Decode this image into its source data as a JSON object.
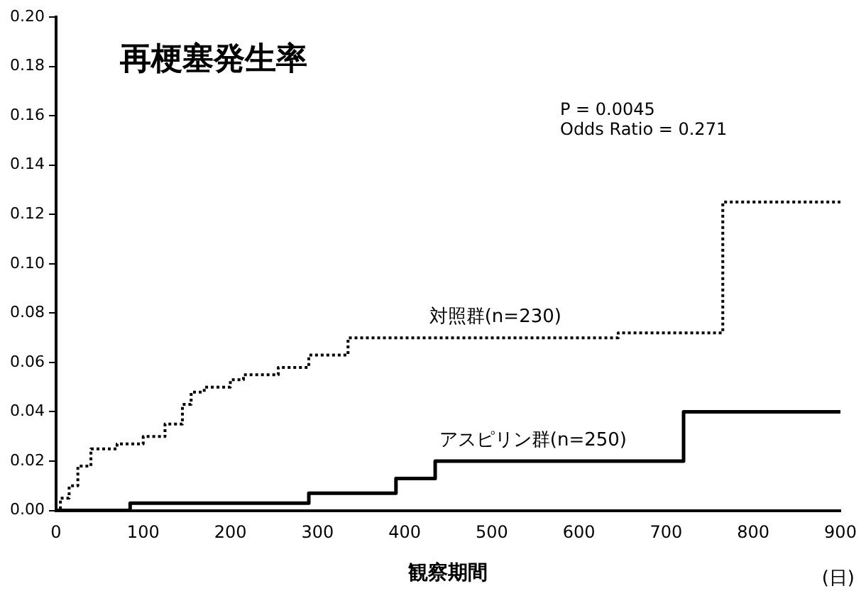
{
  "chart_data": {
    "type": "step",
    "title": "再梗塞発生率",
    "xlabel": "観察期間",
    "annotations": [
      "P = 0.0045",
      "Odds Ratio = 0.271",
      "(日)"
    ],
    "xlim": [
      0,
      900
    ],
    "xticks": [
      0,
      100,
      200,
      300,
      400,
      500,
      600,
      700,
      800,
      900
    ],
    "ylim": [
      0,
      0.2
    ],
    "yticks": [
      {
        "value": 0,
        "label": "0.00"
      },
      {
        "value": 0.02,
        "label": "0.02"
      },
      {
        "value": 0.04,
        "label": "0.04"
      },
      {
        "value": 0.06,
        "label": "0.06"
      },
      {
        "value": 0.08,
        "label": "0.08"
      },
      {
        "value": 0.1,
        "label": "0.10"
      },
      {
        "value": 0.12,
        "label": "0.12"
      },
      {
        "value": 0.14,
        "label": "0.14"
      },
      {
        "value": 0.16,
        "label": "0.16"
      },
      {
        "value": 0.18,
        "label": "0.18"
      },
      {
        "value": 0.2,
        "label": "0.20"
      }
    ],
    "grid": false,
    "legend": false,
    "series": [
      {
        "name": "対照群(n=230)",
        "color": "#000000",
        "line_style": "dotted",
        "x": [
          0,
          5,
          15,
          25,
          40,
          70,
          100,
          125,
          145,
          155,
          170,
          200,
          215,
          255,
          290,
          335,
          645,
          765,
          900
        ],
        "values": [
          0,
          0.005,
          0.01,
          0.018,
          0.025,
          0.027,
          0.03,
          0.035,
          0.043,
          0.048,
          0.05,
          0.053,
          0.055,
          0.058,
          0.063,
          0.07,
          0.072,
          0.125,
          0.125
        ]
      },
      {
        "name": "アスピリン群(n=250)",
        "color": "#000000",
        "line_style": "solid",
        "x": [
          0,
          85,
          290,
          390,
          435,
          720,
          900
        ],
        "values": [
          0,
          0.003,
          0.007,
          0.013,
          0.02,
          0.04,
          0.04
        ]
      }
    ]
  }
}
